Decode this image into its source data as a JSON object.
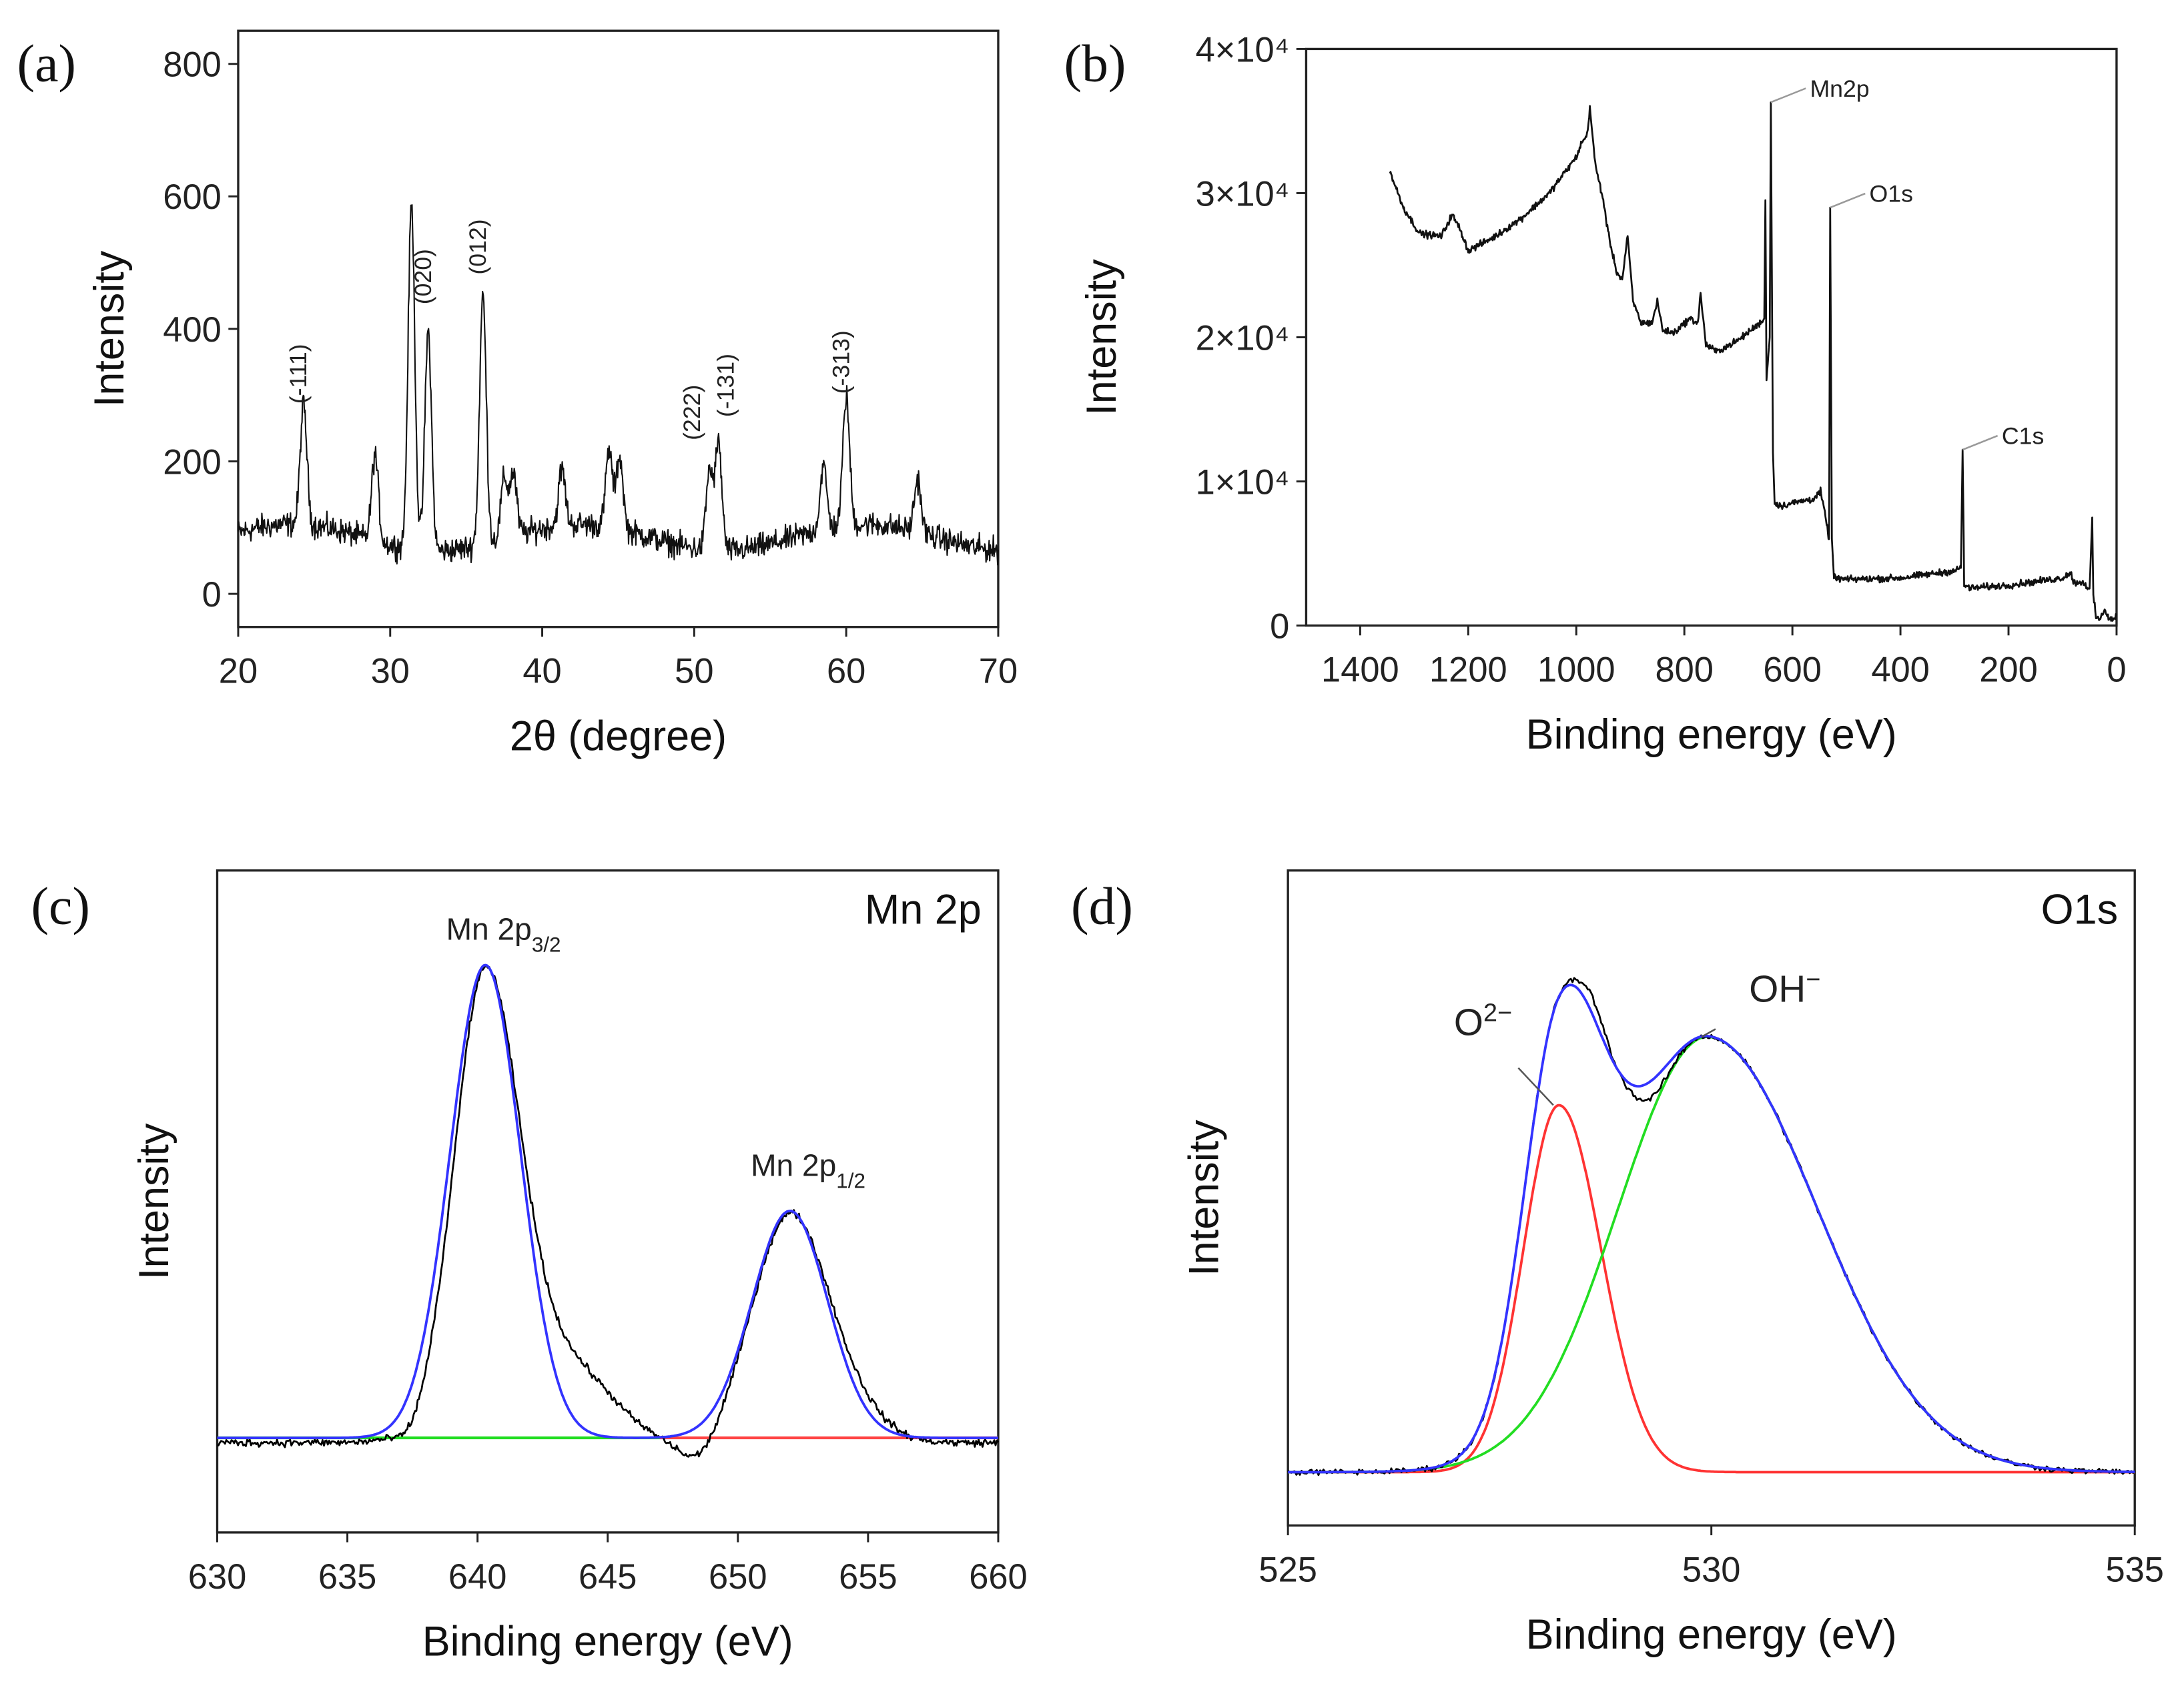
{
  "chart_data": [
    {
      "id": "a",
      "type": "line",
      "panel_label": "(a)",
      "xlabel": "2θ (degree)",
      "ylabel": "Intensity",
      "xlim": [
        20,
        70
      ],
      "ylim": [
        -50,
        850
      ],
      "xticks": [
        20,
        30,
        40,
        50,
        60,
        70
      ],
      "yticks": [
        0,
        200,
        400,
        600,
        800
      ],
      "baseline": 85,
      "noise": 28,
      "peak_width": 0.22,
      "peaks": [
        [
          24.3,
          265
        ],
        [
          29.0,
          215
        ],
        [
          31.4,
          605
        ],
        [
          32.5,
          415
        ],
        [
          36.1,
          460
        ],
        [
          37.5,
          175
        ],
        [
          38.1,
          180
        ],
        [
          41.3,
          170
        ],
        [
          44.4,
          200
        ],
        [
          45.1,
          195
        ],
        [
          51.0,
          205
        ],
        [
          51.6,
          245
        ],
        [
          58.5,
          180
        ],
        [
          60.0,
          280
        ],
        [
          64.7,
          165
        ]
      ],
      "annotations": [
        {
          "text": "(-111)",
          "x": 24.3,
          "y": 270
        },
        {
          "text": "(020)",
          "x": 32.5,
          "y": 420
        },
        {
          "text": "(012)",
          "x": 36.1,
          "y": 465
        },
        {
          "text": "(222)",
          "x": 51.0,
          "y": 215
        },
        {
          "text": "(-131)",
          "x": 51.6,
          "y": 250
        },
        {
          "text": "(-313)",
          "x": 60.0,
          "y": 285
        }
      ]
    },
    {
      "id": "b",
      "type": "line",
      "panel_label": "(b)",
      "xlabel": "Binding energy (eV)",
      "ylabel": "Intensity",
      "xlim": [
        1500,
        0
      ],
      "ylim": [
        0,
        40000
      ],
      "xticks": [
        1400,
        1200,
        1000,
        800,
        600,
        400,
        200,
        0
      ],
      "yticks": [
        0,
        10000,
        20000,
        30000,
        40000
      ],
      "ytick_labels": [
        "0",
        "1×10⁴",
        "2×10⁴",
        "3×10⁴",
        "4×10⁴"
      ],
      "noise": 350,
      "points": [
        [
          1345,
          31500
        ],
        [
          1320,
          29000
        ],
        [
          1290,
          27200
        ],
        [
          1250,
          27000
        ],
        [
          1230,
          28500
        ],
        [
          1215,
          27500
        ],
        [
          1200,
          26000
        ],
        [
          1150,
          27000
        ],
        [
          1100,
          28300
        ],
        [
          1050,
          30000
        ],
        [
          1000,
          32500
        ],
        [
          990,
          33500
        ],
        [
          980,
          34000
        ],
        [
          975,
          36000
        ],
        [
          965,
          32000
        ],
        [
          950,
          29500
        ],
        [
          940,
          27000
        ],
        [
          925,
          24500
        ],
        [
          915,
          24000
        ],
        [
          905,
          27000
        ],
        [
          895,
          22500
        ],
        [
          880,
          21000
        ],
        [
          860,
          21000
        ],
        [
          850,
          22500
        ],
        [
          840,
          20500
        ],
        [
          820,
          20300
        ],
        [
          790,
          21300
        ],
        [
          775,
          21000
        ],
        [
          770,
          23000
        ],
        [
          760,
          19500
        ],
        [
          740,
          19000
        ],
        [
          700,
          19800
        ],
        [
          660,
          21000
        ],
        [
          652,
          21300
        ],
        [
          650,
          29500
        ],
        [
          648,
          17000
        ],
        [
          642,
          20000
        ],
        [
          640,
          36300
        ],
        [
          636,
          12000
        ],
        [
          633,
          8500
        ],
        [
          620,
          8300
        ],
        [
          600,
          8500
        ],
        [
          560,
          8800
        ],
        [
          548,
          9300
        ],
        [
          540,
          7800
        ],
        [
          532,
          6000
        ],
        [
          530,
          29000
        ],
        [
          527,
          6000
        ],
        [
          523,
          3300
        ],
        [
          500,
          3200
        ],
        [
          400,
          3300
        ],
        [
          300,
          3800
        ],
        [
          288,
          4000
        ],
        [
          285,
          12200
        ],
        [
          282,
          2800
        ],
        [
          270,
          2600
        ],
        [
          200,
          2800
        ],
        [
          100,
          3300
        ],
        [
          85,
          3700
        ],
        [
          80,
          3000
        ],
        [
          60,
          3000
        ],
        [
          50,
          2400
        ],
        [
          45,
          7500
        ],
        [
          43,
          2000
        ],
        [
          38,
          600
        ],
        [
          30,
          400
        ],
        [
          22,
          1200
        ],
        [
          15,
          500
        ],
        [
          5,
          400
        ],
        [
          0,
          700
        ]
      ],
      "annotations": [
        {
          "text": "Mn2p",
          "x": 640,
          "y": 36300
        },
        {
          "text": "O1s",
          "x": 530,
          "y": 29000
        },
        {
          "text": "C1s",
          "x": 285,
          "y": 12200
        }
      ]
    },
    {
      "id": "c",
      "type": "line",
      "panel_label": "(c)",
      "title": "Mn 2p",
      "xlabel": "Binding energy (eV)",
      "ylabel": "Intensity",
      "xlim": [
        630,
        660
      ],
      "ylim": [
        -0.2,
        1.2
      ],
      "xticks": [
        630,
        635,
        640,
        645,
        650,
        655,
        660
      ],
      "fit_peaks": [
        {
          "name": "Mn 2p3/2",
          "center": 640.3,
          "height": 1.0,
          "sigma": 1.35
        },
        {
          "name": "Mn 2p1/2",
          "center": 652.0,
          "height": 0.48,
          "sigma": 1.45
        }
      ],
      "baseline_segments": [
        {
          "from": 630,
          "to": 647,
          "color": "#22dd22"
        },
        {
          "from": 647,
          "to": 660,
          "color": "#ff4444"
        }
      ],
      "fit_color": "#3333ff",
      "data_color": "#000000",
      "noise": 0.012,
      "annotations": [
        {
          "main": "Mn 2p",
          "sub": "3/2",
          "x": 640.3,
          "y": 1.03
        },
        {
          "main": "Mn 2p",
          "sub": "1/2",
          "x": 652.0,
          "y": 0.53
        }
      ]
    },
    {
      "id": "d",
      "type": "line",
      "panel_label": "(d)",
      "title": "O1s",
      "xlabel": "Binding energy (eV)",
      "ylabel": "Intensity",
      "xlim": [
        525,
        535
      ],
      "ylim": [
        -0.125,
        1.41
      ],
      "xticks": [
        525,
        530,
        535
      ],
      "components": [
        {
          "name": "O2−",
          "center": 528.2,
          "height": 0.86,
          "sigma_low": 0.42,
          "sigma_high": 0.5,
          "color": "#ff3333"
        },
        {
          "name": "OH−",
          "center": 529.95,
          "height": 1.02,
          "sigma_low": 1.05,
          "sigma_high": 1.3,
          "color": "#22dd22"
        }
      ],
      "fit_color": "#3333ff",
      "data_color": "#000000",
      "noise": 0.01,
      "annotations": [
        {
          "main": "O",
          "sup": "2−",
          "x": 528.2,
          "y": 0.86
        },
        {
          "main": "OH",
          "sup": "−",
          "x": 529.95,
          "y": 1.02
        }
      ]
    }
  ]
}
